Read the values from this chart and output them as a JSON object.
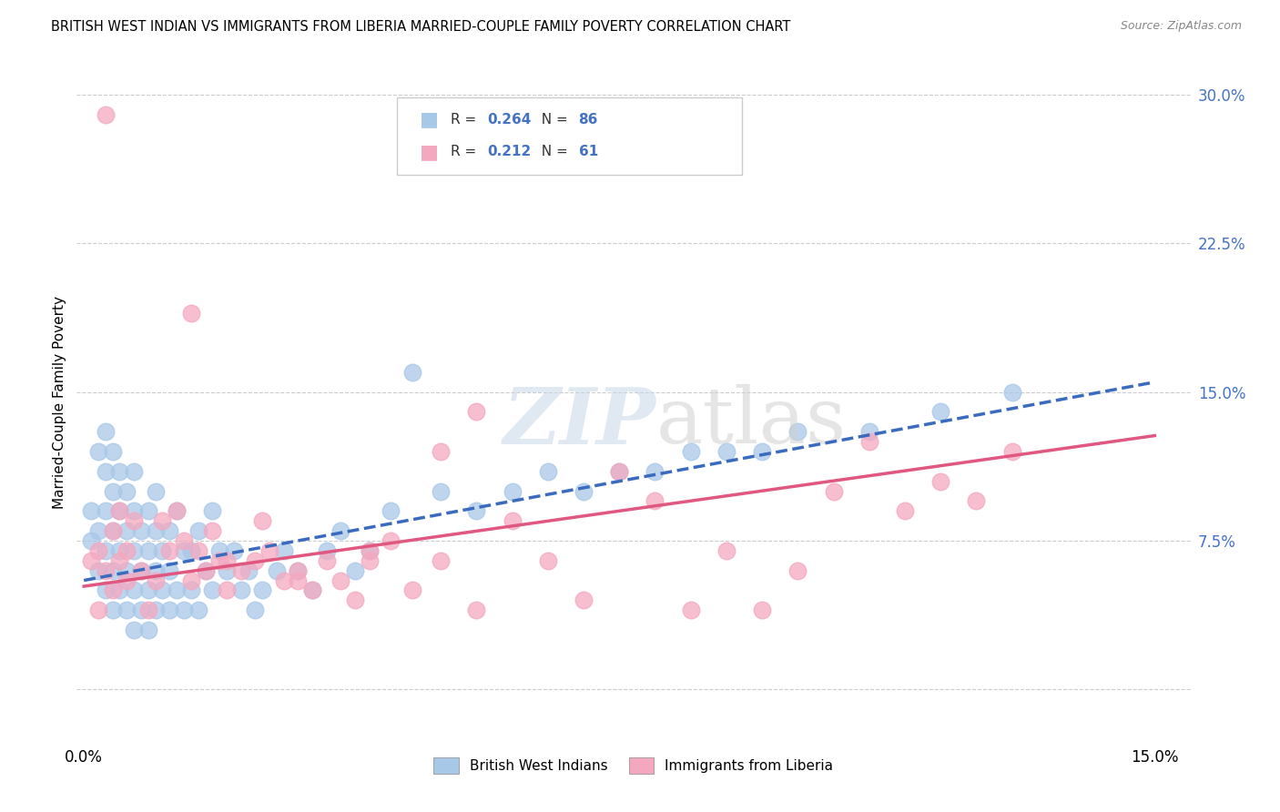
{
  "title": "BRITISH WEST INDIAN VS IMMIGRANTS FROM LIBERIA MARRIED-COUPLE FAMILY POVERTY CORRELATION CHART",
  "source": "Source: ZipAtlas.com",
  "ylabel": "Married-Couple Family Poverty",
  "ytick_values": [
    0.0,
    0.075,
    0.15,
    0.225,
    0.3
  ],
  "xmin": -0.001,
  "xmax": 0.155,
  "ymin": -0.025,
  "ymax": 0.315,
  "legend_blue_r": "0.264",
  "legend_blue_n": "86",
  "legend_pink_r": "0.212",
  "legend_pink_n": "61",
  "blue_color": "#a8c8e8",
  "pink_color": "#f4a8c0",
  "blue_line_color": "#3a6bbf",
  "pink_line_color": "#e05880",
  "label_blue": "British West Indians",
  "label_pink": "Immigrants from Liberia",
  "blue_scatter_x": [
    0.001,
    0.001,
    0.002,
    0.002,
    0.002,
    0.003,
    0.003,
    0.003,
    0.003,
    0.003,
    0.004,
    0.004,
    0.004,
    0.004,
    0.004,
    0.005,
    0.005,
    0.005,
    0.005,
    0.006,
    0.006,
    0.006,
    0.006,
    0.007,
    0.007,
    0.007,
    0.007,
    0.007,
    0.008,
    0.008,
    0.008,
    0.009,
    0.009,
    0.009,
    0.009,
    0.01,
    0.01,
    0.01,
    0.01,
    0.011,
    0.011,
    0.012,
    0.012,
    0.012,
    0.013,
    0.013,
    0.014,
    0.014,
    0.015,
    0.015,
    0.016,
    0.016,
    0.017,
    0.018,
    0.018,
    0.019,
    0.02,
    0.021,
    0.022,
    0.023,
    0.024,
    0.025,
    0.027,
    0.028,
    0.03,
    0.032,
    0.034,
    0.036,
    0.038,
    0.04,
    0.043,
    0.046,
    0.05,
    0.055,
    0.06,
    0.065,
    0.07,
    0.075,
    0.08,
    0.085,
    0.09,
    0.095,
    0.1,
    0.11,
    0.12,
    0.13
  ],
  "blue_scatter_y": [
    0.075,
    0.09,
    0.06,
    0.08,
    0.12,
    0.05,
    0.07,
    0.09,
    0.11,
    0.13,
    0.04,
    0.06,
    0.08,
    0.1,
    0.12,
    0.05,
    0.07,
    0.09,
    0.11,
    0.04,
    0.06,
    0.08,
    0.1,
    0.03,
    0.05,
    0.07,
    0.09,
    0.11,
    0.04,
    0.06,
    0.08,
    0.03,
    0.05,
    0.07,
    0.09,
    0.04,
    0.06,
    0.08,
    0.1,
    0.05,
    0.07,
    0.04,
    0.06,
    0.08,
    0.05,
    0.09,
    0.04,
    0.07,
    0.05,
    0.07,
    0.04,
    0.08,
    0.06,
    0.05,
    0.09,
    0.07,
    0.06,
    0.07,
    0.05,
    0.06,
    0.04,
    0.05,
    0.06,
    0.07,
    0.06,
    0.05,
    0.07,
    0.08,
    0.06,
    0.07,
    0.09,
    0.16,
    0.1,
    0.09,
    0.1,
    0.11,
    0.1,
    0.11,
    0.11,
    0.12,
    0.12,
    0.12,
    0.13,
    0.13,
    0.14,
    0.15
  ],
  "pink_scatter_x": [
    0.001,
    0.002,
    0.002,
    0.003,
    0.003,
    0.004,
    0.004,
    0.005,
    0.005,
    0.006,
    0.006,
    0.007,
    0.008,
    0.009,
    0.01,
    0.011,
    0.012,
    0.013,
    0.014,
    0.015,
    0.016,
    0.017,
    0.018,
    0.019,
    0.02,
    0.022,
    0.024,
    0.026,
    0.028,
    0.03,
    0.032,
    0.034,
    0.036,
    0.038,
    0.04,
    0.043,
    0.046,
    0.05,
    0.055,
    0.06,
    0.065,
    0.07,
    0.075,
    0.08,
    0.085,
    0.09,
    0.095,
    0.1,
    0.105,
    0.11,
    0.115,
    0.12,
    0.125,
    0.13,
    0.015,
    0.02,
    0.025,
    0.03,
    0.04,
    0.05,
    0.055
  ],
  "pink_scatter_y": [
    0.065,
    0.04,
    0.07,
    0.29,
    0.06,
    0.05,
    0.08,
    0.065,
    0.09,
    0.055,
    0.07,
    0.085,
    0.06,
    0.04,
    0.055,
    0.085,
    0.07,
    0.09,
    0.075,
    0.055,
    0.07,
    0.06,
    0.08,
    0.065,
    0.05,
    0.06,
    0.065,
    0.07,
    0.055,
    0.06,
    0.05,
    0.065,
    0.055,
    0.045,
    0.07,
    0.075,
    0.05,
    0.065,
    0.04,
    0.085,
    0.065,
    0.045,
    0.11,
    0.095,
    0.04,
    0.07,
    0.04,
    0.06,
    0.1,
    0.125,
    0.09,
    0.105,
    0.095,
    0.12,
    0.19,
    0.065,
    0.085,
    0.055,
    0.065,
    0.12,
    0.14
  ]
}
